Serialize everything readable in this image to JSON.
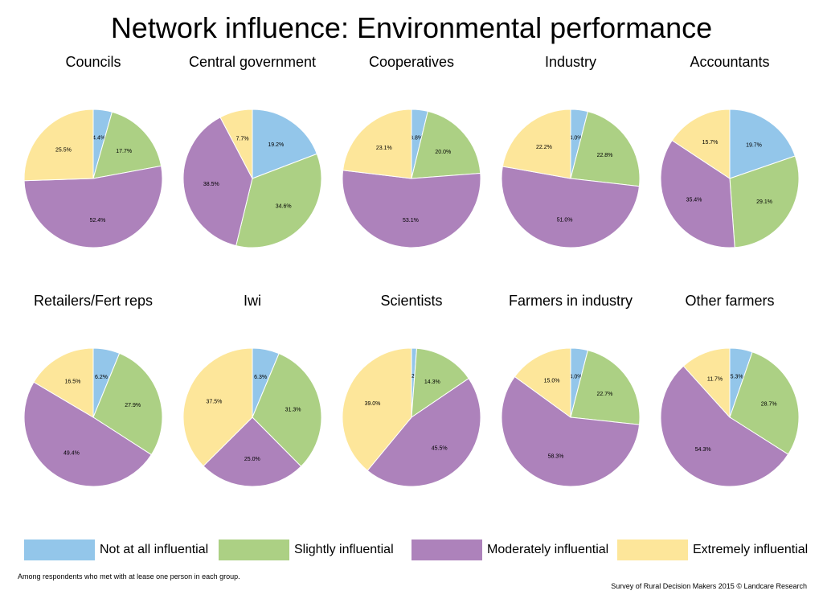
{
  "title": "Network influence: Environmental performance",
  "footnote": "Among respondents who met with at lease one person in each group.",
  "source": "Survey of Rural Decision Makers 2015 © Landcare Research",
  "legend": [
    {
      "label": "Not at all influential",
      "color": "#93c6ea"
    },
    {
      "label": "Slightly influential",
      "color": "#acd084"
    },
    {
      "label": "Moderately influential",
      "color": "#ad82bb"
    },
    {
      "label": "Extremely influential",
      "color": "#fde69a"
    }
  ],
  "chart_data": [
    {
      "type": "pie",
      "title": "Councils",
      "categories": [
        "Not at all influential",
        "Slightly influential",
        "Moderately influential",
        "Extremely influential"
      ],
      "values": [
        4.4,
        17.7,
        52.4,
        25.5
      ],
      "labels": [
        "4.4%",
        "17.7%",
        "52.4%",
        "25.5%"
      ]
    },
    {
      "type": "pie",
      "title": "Central government",
      "categories": [
        "Not at all influential",
        "Slightly influential",
        "Moderately influential",
        "Extremely influential"
      ],
      "values": [
        19.2,
        34.6,
        38.5,
        7.7
      ],
      "labels": [
        "19.2%",
        "34.6%",
        "38.5%",
        "7.7%"
      ]
    },
    {
      "type": "pie",
      "title": "Cooperatives",
      "categories": [
        "Not at all influential",
        "Slightly influential",
        "Moderately influential",
        "Extremely influential"
      ],
      "values": [
        3.8,
        20.0,
        53.1,
        23.1
      ],
      "labels": [
        "3.8%",
        "20.0%",
        "53.1%",
        "23.1%"
      ]
    },
    {
      "type": "pie",
      "title": "Industry",
      "categories": [
        "Not at all influential",
        "Slightly influential",
        "Moderately influential",
        "Extremely influential"
      ],
      "values": [
        4.0,
        22.8,
        51.0,
        22.2
      ],
      "labels": [
        "4.0%",
        "22.8%",
        "51.0%",
        "22.2%"
      ]
    },
    {
      "type": "pie",
      "title": "Accountants",
      "categories": [
        "Not at all influential",
        "Slightly influential",
        "Moderately influential",
        "Extremely influential"
      ],
      "values": [
        19.7,
        29.1,
        35.4,
        15.7
      ],
      "labels": [
        "19.7%",
        "29.1%",
        "35.4%",
        "15.7%"
      ]
    },
    {
      "type": "pie",
      "title": "Retailers/Fert reps",
      "categories": [
        "Not at all influential",
        "Slightly influential",
        "Moderately influential",
        "Extremely influential"
      ],
      "values": [
        6.2,
        27.9,
        49.4,
        16.5
      ],
      "labels": [
        "6.2%",
        "27.9%",
        "49.4%",
        "16.5%"
      ]
    },
    {
      "type": "pie",
      "title": "Iwi",
      "categories": [
        "Not at all influential",
        "Slightly influential",
        "Moderately influential",
        "Extremely influential"
      ],
      "values": [
        6.3,
        31.3,
        25.0,
        37.5
      ],
      "labels": [
        "6.3%",
        "31.3%",
        "25.0%",
        "37.5%"
      ]
    },
    {
      "type": "pie",
      "title": "Scientists",
      "categories": [
        "Not at all influential",
        "Slightly influential",
        "Moderately influential",
        "Extremely influential"
      ],
      "values": [
        1.2,
        14.3,
        45.5,
        39.0
      ],
      "labels": [
        "1.2%",
        "14.3%",
        "45.5%",
        "39.0%"
      ]
    },
    {
      "type": "pie",
      "title": "Farmers in industry",
      "categories": [
        "Not at all influential",
        "Slightly influential",
        "Moderately influential",
        "Extremely influential"
      ],
      "values": [
        4.0,
        22.7,
        58.3,
        15.0
      ],
      "labels": [
        "4.0%",
        "22.7%",
        "58.3%",
        "15.0%"
      ]
    },
    {
      "type": "pie",
      "title": "Other farmers",
      "categories": [
        "Not at all influential",
        "Slightly influential",
        "Moderately influential",
        "Extremely influential"
      ],
      "values": [
        5.3,
        28.7,
        54.3,
        11.7
      ],
      "labels": [
        "5.3%",
        "28.7%",
        "54.3%",
        "11.7%"
      ]
    }
  ]
}
